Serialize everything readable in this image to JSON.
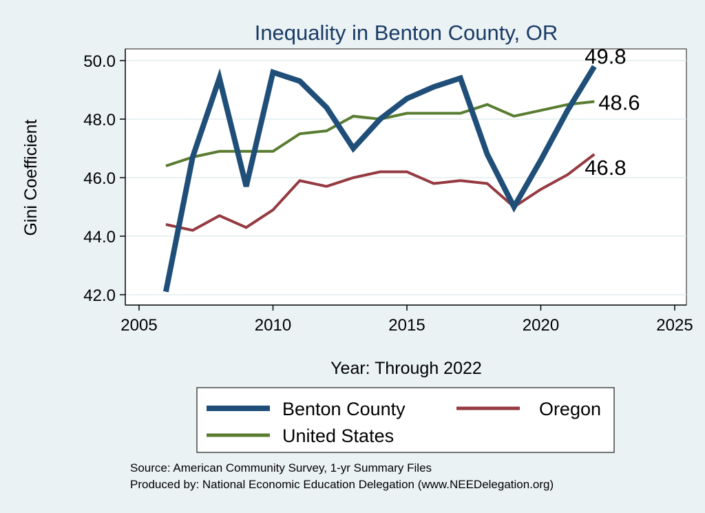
{
  "chart_data": {
    "type": "line",
    "title": "Inequality in Benton County, OR",
    "xlabel": "Year: Through 2022",
    "ylabel": "Gini Coefficient",
    "xlim": [
      2005,
      2025
    ],
    "ylim": [
      42.0,
      50.0
    ],
    "x_ticks": [
      2005,
      2010,
      2015,
      2020,
      2025
    ],
    "x_tick_labels": [
      "2005",
      "2010",
      "2015",
      "2020",
      "2025"
    ],
    "y_ticks": [
      42.0,
      44.0,
      46.0,
      48.0,
      50.0
    ],
    "y_tick_labels": [
      "42.0",
      "44.0",
      "46.0",
      "48.0",
      "50.0"
    ],
    "grid": true,
    "legend_position": "bottom",
    "x": [
      2006,
      2007,
      2008,
      2009,
      2010,
      2011,
      2012,
      2013,
      2014,
      2015,
      2016,
      2017,
      2018,
      2019,
      2020,
      2021,
      2022
    ],
    "series": [
      {
        "name": "Benton County",
        "color": "#1f4e79",
        "values": [
          42.1,
          46.7,
          49.4,
          45.7,
          49.6,
          49.3,
          48.4,
          47.0,
          48.0,
          48.7,
          49.1,
          49.4,
          46.8,
          45.0,
          46.6,
          48.3,
          49.8
        ],
        "end_label": "49.8"
      },
      {
        "name": "Oregon",
        "color": "#953a41",
        "values": [
          44.4,
          44.2,
          44.7,
          44.3,
          44.9,
          45.9,
          45.7,
          46.0,
          46.2,
          46.2,
          45.8,
          45.9,
          45.8,
          45.0,
          45.6,
          46.1,
          46.8
        ],
        "end_label": "46.8"
      },
      {
        "name": "United States",
        "color": "#597c31",
        "values": [
          46.4,
          46.7,
          46.9,
          46.9,
          46.9,
          47.5,
          47.6,
          48.1,
          48.0,
          48.2,
          48.2,
          48.2,
          48.5,
          48.1,
          48.3,
          48.5,
          48.6
        ],
        "end_label": "48.6"
      }
    ]
  },
  "legend": {
    "items": [
      "Benton County",
      "Oregon",
      "United States"
    ]
  },
  "notes": {
    "source": "Source: American Community Survey, 1-yr Summary Files",
    "produced_by": "Produced by: National Economic Education Delegation (www.NEEDelegation.org)"
  }
}
